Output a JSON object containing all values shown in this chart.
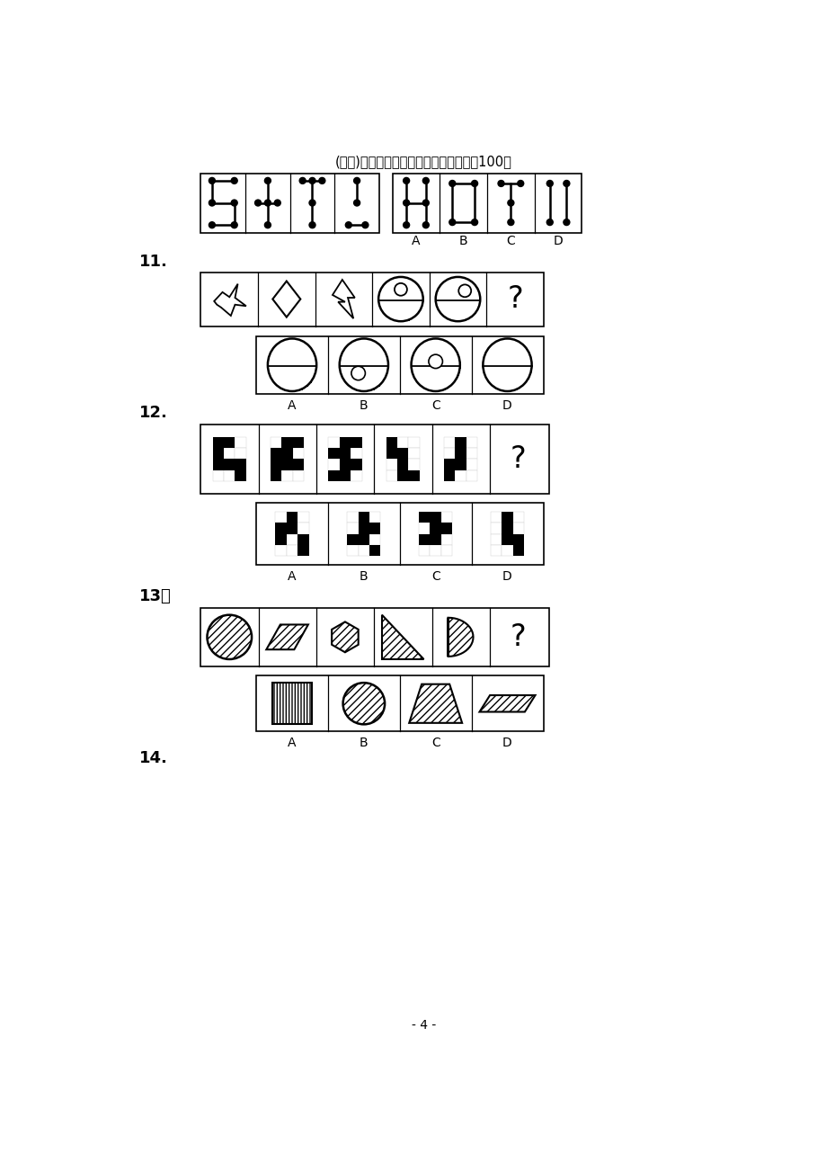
{
  "title": "(完整)公务员考试行测图形推理经典题型100题",
  "page_number": "- 4 -",
  "background": "#ffffff",
  "q11_label": "11.",
  "q12_label": "12.",
  "q13_label": "13。",
  "q14_label": "14."
}
